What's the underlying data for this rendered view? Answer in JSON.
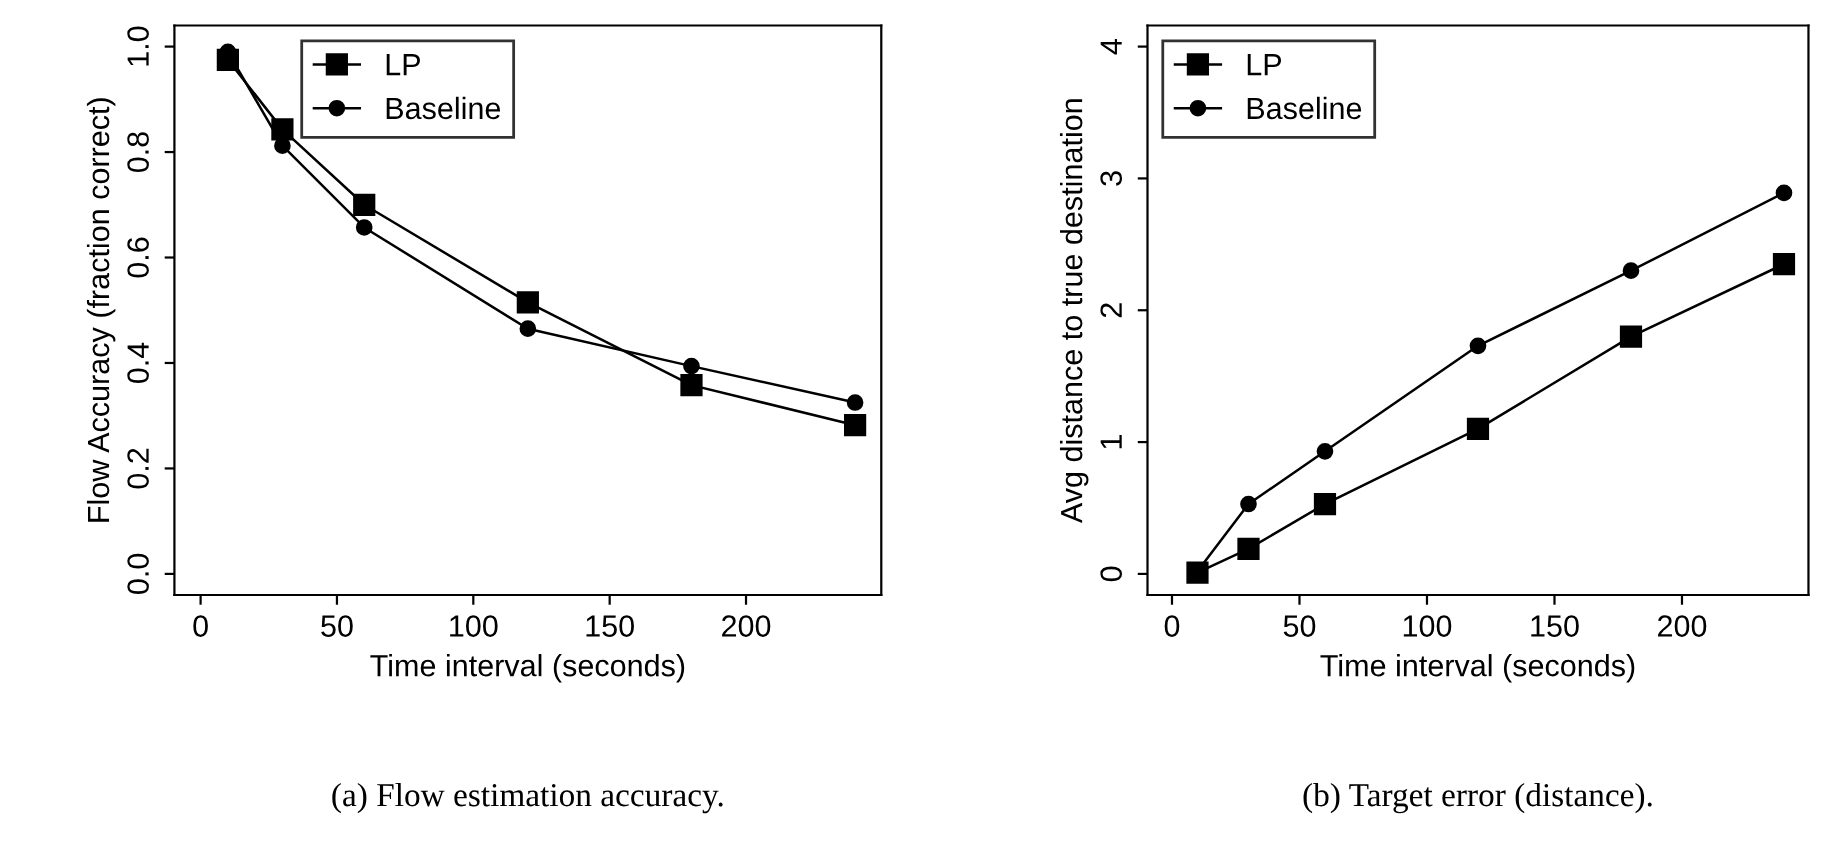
{
  "chart_data": [
    {
      "type": "line",
      "xlabel": "Time interval (seconds)",
      "ylabel": "Flow Accuracy (fraction correct)",
      "x": [
        10,
        30,
        60,
        120,
        180,
        240
      ],
      "xlim": [
        -9.6,
        249.6
      ],
      "xticks": [
        0,
        50,
        100,
        150,
        200
      ],
      "ylim": [
        -0.04,
        1.04
      ],
      "yticks": [
        {
          "value": 0,
          "label": "0.0"
        },
        0.2,
        0.4,
        0.6,
        0.8,
        {
          "value": 1,
          "label": "1.0"
        }
      ],
      "grid": false,
      "legend": "top",
      "annotations": [
        "(a) Flow estimation accuracy."
      ],
      "series": [
        {
          "name": "LP",
          "color": "#000000",
          "marker": "square",
          "values": [
            0.975,
            0.843,
            0.7,
            0.515,
            0.358,
            0.282
          ]
        },
        {
          "name": "Baseline",
          "color": "#000000",
          "marker": "circle",
          "values": [
            0.99,
            0.812,
            0.657,
            0.465,
            0.394,
            0.325
          ]
        }
      ]
    },
    {
      "type": "line",
      "xlabel": "Time interval (seconds)",
      "ylabel": "Avg distance to true destination",
      "x": [
        10,
        30,
        60,
        120,
        180,
        240
      ],
      "xlim": [
        -9.6,
        249.6
      ],
      "xticks": [
        0,
        50,
        100,
        150,
        200
      ],
      "ylim": [
        -0.16,
        4.16
      ],
      "yticks": [
        0,
        1,
        2,
        3,
        4
      ],
      "grid": false,
      "legend": "top left",
      "annotations": [
        "(b) Target error (distance)."
      ],
      "series": [
        {
          "name": "LP",
          "color": "#000000",
          "marker": "square",
          "values": [
            0.01,
            0.19,
            0.53,
            1.1,
            1.8,
            2.35
          ]
        },
        {
          "name": "Baseline",
          "color": "#000000",
          "marker": "circle",
          "values": [
            0.02,
            0.53,
            0.93,
            1.73,
            2.3,
            2.89
          ]
        }
      ]
    }
  ]
}
